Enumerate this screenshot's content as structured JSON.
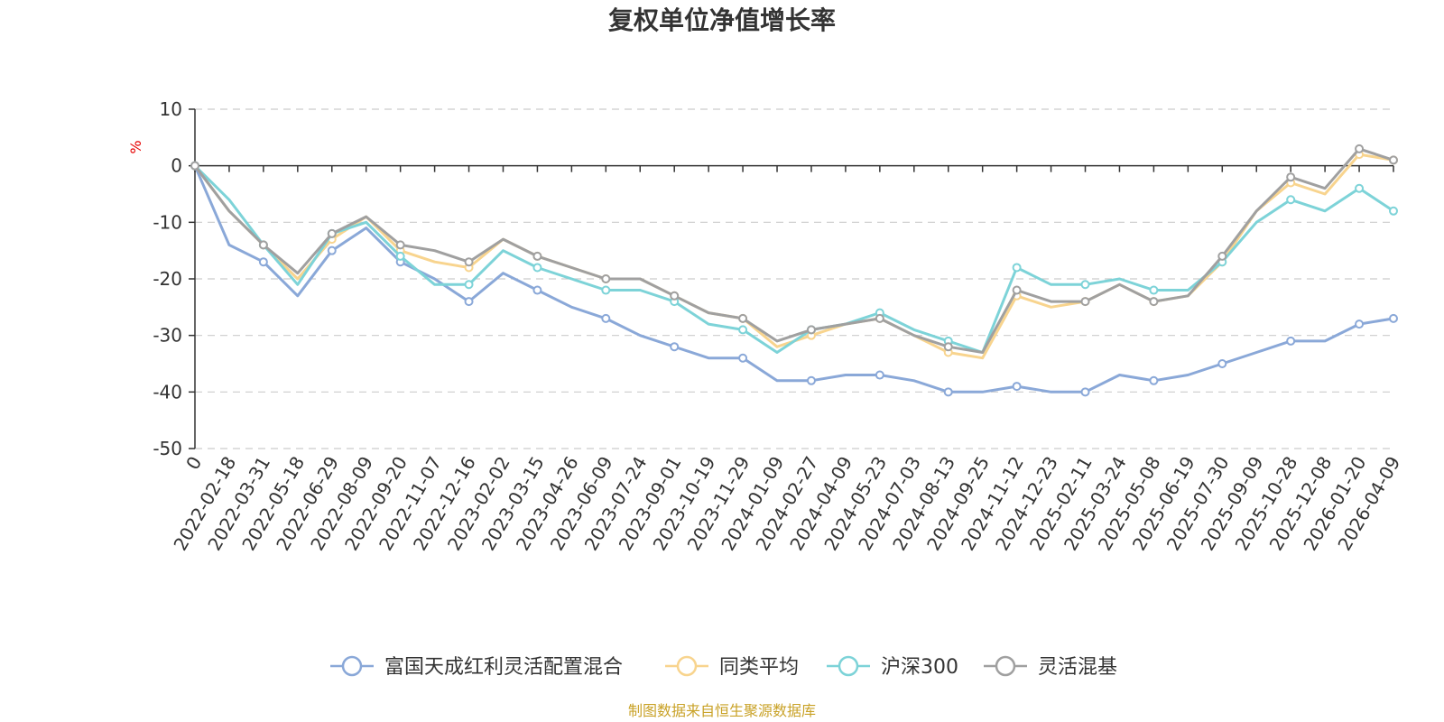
{
  "chart_data": {
    "type": "line",
    "title": "复权单位净值增长率",
    "ylabel": "%",
    "xlabel": "",
    "ylim": [
      -50,
      10
    ],
    "yticks": [
      10,
      0,
      -10,
      -20,
      -30,
      -40,
      -50
    ],
    "grid": true,
    "legend_position": "bottom",
    "source": "制图数据来自恒生聚源数据库",
    "categories": [
      "0",
      "2022-02-18",
      "2022-03-31",
      "2022-05-18",
      "2022-06-29",
      "2022-08-09",
      "2022-09-20",
      "2022-11-07",
      "2022-12-16",
      "2023-02-02",
      "2023-03-15",
      "2023-04-26",
      "2023-06-09",
      "2023-07-24",
      "2023-09-01",
      "2023-10-19",
      "2023-11-29",
      "2024-01-09",
      "2024-02-27",
      "2024-04-09",
      "2024-05-23",
      "2024-07-03",
      "2024-08-13",
      "2024-09-25",
      "2024-11-12",
      "2024-12-23",
      "2025-02-11",
      "2025-03-24",
      "2025-05-08",
      "2025-06-19",
      "2025-07-30",
      "2025-09-09",
      "2025-10-28",
      "2025-12-08",
      "2026-01-20",
      "2026-04-09"
    ],
    "series": [
      {
        "name": "富国天成红利灵活配置混合",
        "color": "#8aa8d8",
        "values": [
          0,
          -14,
          -17,
          -23,
          -15,
          -11,
          -17,
          -20,
          -24,
          -19,
          -22,
          -25,
          -27,
          -30,
          -32,
          -34,
          -34,
          -38,
          -38,
          -37,
          -37,
          -38,
          -40,
          -40,
          -39,
          -40,
          -40,
          -37,
          -38,
          -37,
          -35,
          -33,
          -31,
          -31,
          -28,
          -27
        ]
      },
      {
        "name": "同类平均",
        "color": "#f8d48e",
        "values": [
          0,
          -8,
          -14,
          -20,
          -13,
          -9,
          -15,
          -17,
          -18,
          -13,
          -16,
          -18,
          -20,
          -20,
          -23,
          -26,
          -27,
          -32,
          -30,
          -28,
          -27,
          -30,
          -33,
          -34,
          -23,
          -25,
          -24,
          -21,
          -24,
          -23,
          -17,
          -8,
          -3,
          -5,
          2,
          1
        ]
      },
      {
        "name": "沪深300",
        "color": "#7dd3d8",
        "values": [
          0,
          -6,
          -14,
          -21,
          -12,
          -10,
          -16,
          -21,
          -21,
          -15,
          -18,
          -20,
          -22,
          -22,
          -24,
          -28,
          -29,
          -33,
          -29,
          -28,
          -26,
          -29,
          -31,
          -33,
          -18,
          -21,
          -21,
          -20,
          -22,
          -22,
          -17,
          -10,
          -6,
          -8,
          -4,
          -8
        ]
      },
      {
        "name": "灵活混基",
        "color": "#a0a0a0",
        "values": [
          0,
          -8,
          -14,
          -19,
          -12,
          -9,
          -14,
          -15,
          -17,
          -13,
          -16,
          -18,
          -20,
          -20,
          -23,
          -26,
          -27,
          -31,
          -29,
          -28,
          -27,
          -30,
          -32,
          -33,
          -22,
          -24,
          -24,
          -21,
          -24,
          -23,
          -16,
          -8,
          -2,
          -4,
          3,
          1
        ]
      }
    ]
  }
}
